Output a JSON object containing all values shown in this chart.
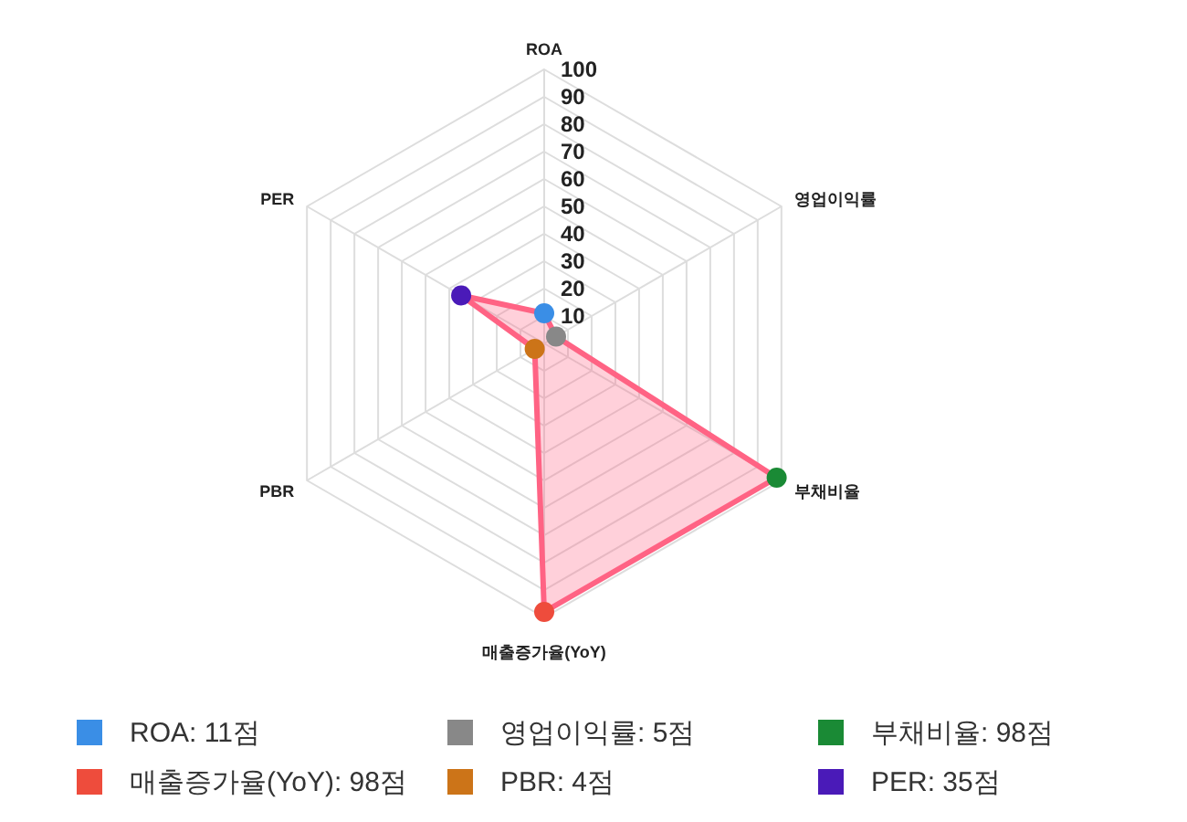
{
  "chart_data": {
    "type": "radar",
    "categories": [
      "ROA",
      "영업이익률",
      "부채비율",
      "매출증가율(YoY)",
      "PBR",
      "PER"
    ],
    "series": [
      {
        "color": "#ff6384",
        "values": [
          11,
          5,
          98,
          98,
          4,
          35
        ],
        "colors": [
          "#3a8ee6",
          "#888888",
          "#1a8a35",
          "#ee4c3c",
          "#cc7418",
          "#4a1ab8"
        ]
      }
    ],
    "annotations": [
      "ROA: 11점",
      "영업이익률: 5점",
      "부채비율: 98점",
      "매출증가율(YoY): 98점",
      "PBR: 4점",
      "PER: 35점"
    ],
    "ylim": [
      0,
      100
    ],
    "yticks": [
      10,
      20,
      30,
      40,
      50,
      60,
      70,
      80,
      90,
      100
    ],
    "grid": true,
    "marker": "circle",
    "line_style": "solid"
  }
}
